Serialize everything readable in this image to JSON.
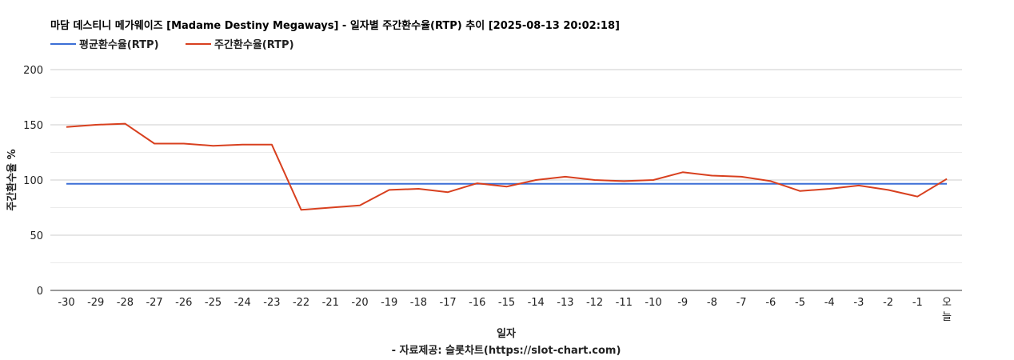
{
  "chart_data": {
    "type": "line",
    "title": "마담 데스티니 메가웨이즈 [Madame Destiny Megaways] - 일자별 주간환수율(RTP) 추이 [2025-08-13 20:02:18]",
    "xlabel": "일자",
    "ylabel": "주간환수율 %",
    "source": "- 자료제공: 슬롯차트(https://slot-chart.com)",
    "ylim": [
      0,
      200
    ],
    "yticks": [
      0,
      50,
      100,
      150,
      200
    ],
    "grid": true,
    "legend_position": "top-left",
    "categories": [
      "-30",
      "-29",
      "-28",
      "-27",
      "-26",
      "-25",
      "-24",
      "-23",
      "-22",
      "-21",
      "-20",
      "-19",
      "-18",
      "-17",
      "-16",
      "-15",
      "-14",
      "-13",
      "-12",
      "-11",
      "-10",
      "-9",
      "-8",
      "-7",
      "-6",
      "-5",
      "-4",
      "-3",
      "-2",
      "-1",
      "오늘"
    ],
    "series": [
      {
        "name": "평균환수율(RTP)",
        "color": "#3c6fd6",
        "values": [
          96.5,
          96.5,
          96.5,
          96.5,
          96.5,
          96.5,
          96.5,
          96.5,
          96.5,
          96.5,
          96.5,
          96.5,
          96.5,
          96.5,
          96.5,
          96.5,
          96.5,
          96.5,
          96.5,
          96.5,
          96.5,
          96.5,
          96.5,
          96.5,
          96.5,
          96.5,
          96.5,
          96.5,
          96.5,
          96.5,
          96.5
        ]
      },
      {
        "name": "주간환수율(RTP)",
        "color": "#d8401f",
        "values": [
          148,
          150,
          151,
          133,
          133,
          131,
          132,
          132,
          73,
          75,
          77,
          91,
          92,
          89,
          97,
          94,
          100,
          103,
          100,
          99,
          100,
          107,
          104,
          103,
          99,
          90,
          92,
          95,
          91,
          85,
          101
        ]
      }
    ]
  }
}
